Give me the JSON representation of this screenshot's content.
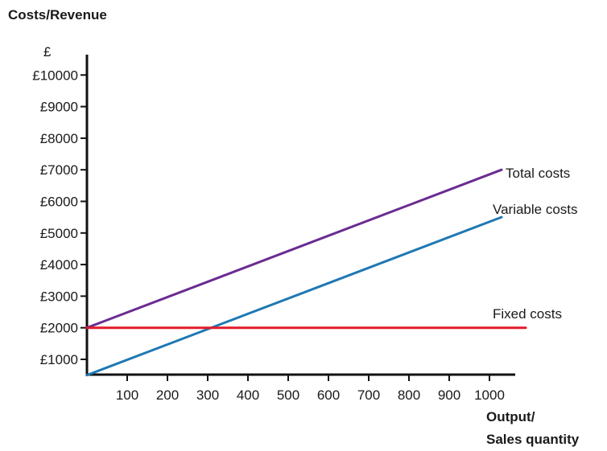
{
  "chart_data": {
    "type": "line",
    "ylabel": "Costs/Revenue",
    "yunit": "£",
    "xlabel_lines": [
      "Output/",
      "Sales quantity"
    ],
    "ylim": [
      500,
      10500
    ],
    "xlim": [
      0,
      1050
    ],
    "yticks": [
      1000,
      2000,
      3000,
      4000,
      5000,
      6000,
      7000,
      8000,
      9000,
      10000
    ],
    "ytick_labels": [
      "£1000",
      "£2000",
      "£3000",
      "£4000",
      "£5000",
      "£6000",
      "£7000",
      "£8000",
      "£9000",
      "£10000"
    ],
    "xticks": [
      100,
      200,
      300,
      400,
      500,
      600,
      700,
      800,
      900,
      1000
    ],
    "xtick_labels": [
      "100",
      "200",
      "300",
      "400",
      "500",
      "600",
      "700",
      "800",
      "900",
      "1000"
    ],
    "grid": false,
    "series": [
      {
        "name": "Total costs",
        "color": "#6a2c91",
        "x": [
          0,
          1030
        ],
        "y": [
          2000,
          7000
        ]
      },
      {
        "name": "Variable costs",
        "color": "#1f78b4",
        "x": [
          0,
          1030
        ],
        "y": [
          500,
          5500
        ]
      },
      {
        "name": "Fixed costs",
        "color": "#e41a2c",
        "x": [
          0,
          1090
        ],
        "y": [
          2000,
          2000
        ]
      }
    ]
  }
}
